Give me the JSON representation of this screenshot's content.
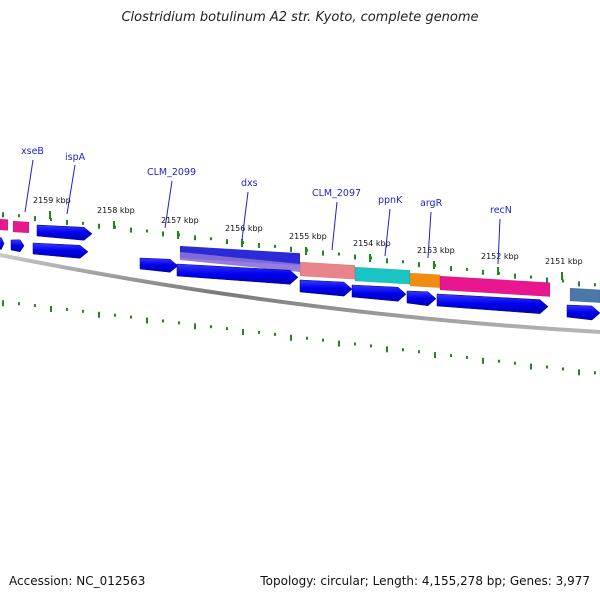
{
  "title": "Clostridium botulinum A2 str. Kyoto, complete genome",
  "accession": "Accession: NC_012563",
  "stats": "Topology: circular; Length: 4,155,278 bp; Genes: 3,977",
  "colors": {
    "backbone": "#808080",
    "tick": "#1e8a1e",
    "gene_label": "#1f1fd0",
    "cds": "#0000ee"
  },
  "kbp_ticks": [
    "2159 kbp",
    "2158 kbp",
    "2157 kbp",
    "2156 kbp",
    "2155 kbp",
    "2154 kbp",
    "2153 kbp",
    "2152 kbp",
    "2151 kbp"
  ],
  "gene_labels": [
    "xseB",
    "ispA",
    "CLM_2099",
    "dxs",
    "CLM_2097",
    "ppnK",
    "argR",
    "recN"
  ],
  "cog_segments": [
    {
      "color": "#e8168f"
    },
    {
      "color": "#e8168f"
    },
    {
      "color": "#2a2ad8"
    },
    {
      "color": "#e9848a"
    },
    {
      "color": "#19c4c4"
    },
    {
      "color": "#f28c0f"
    },
    {
      "color": "#e8168f"
    },
    {
      "color": "#4a78a8"
    }
  ]
}
